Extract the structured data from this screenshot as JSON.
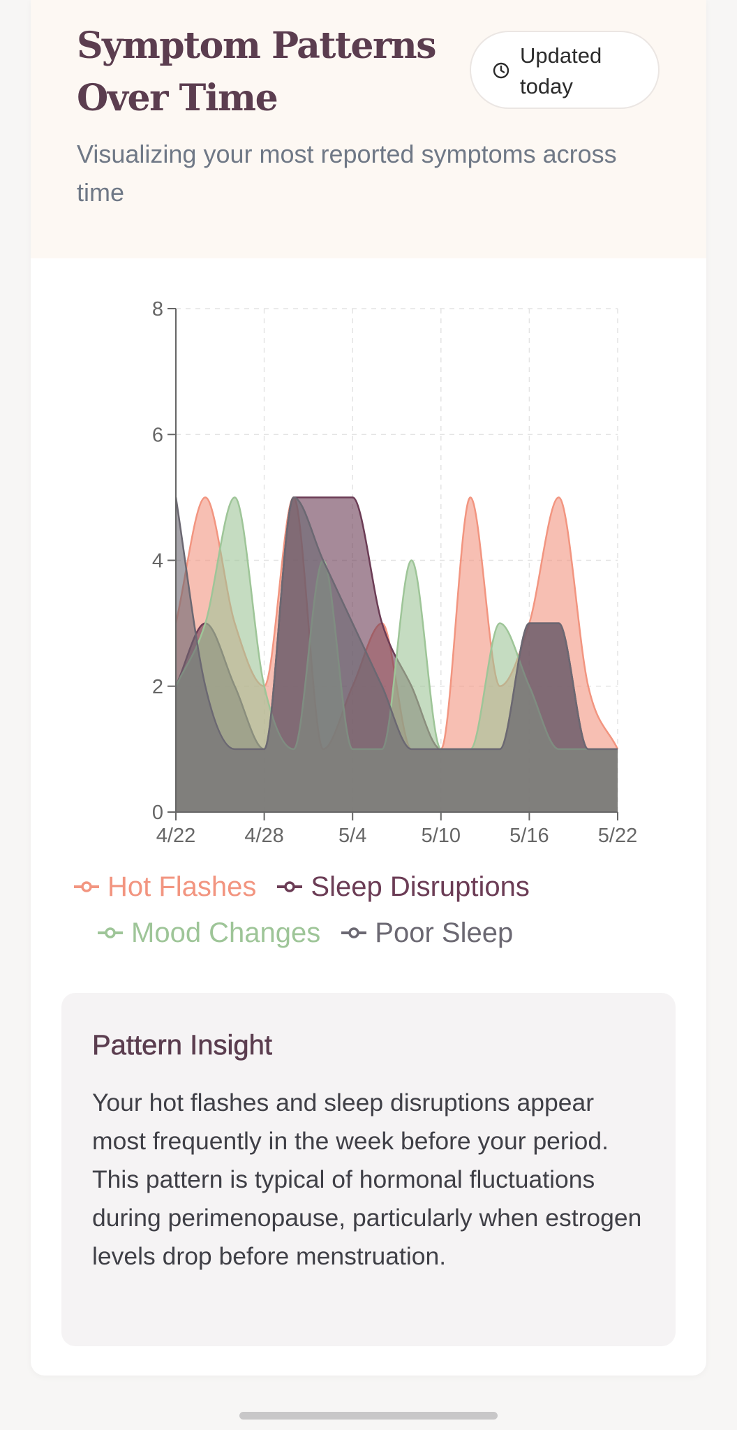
{
  "header": {
    "title": "Symptom Patterns Over Time",
    "badge_text": "Updated today",
    "subtitle": "Visualizing your most reported symptoms across time",
    "badge_icon": "clock-icon"
  },
  "chart_data": {
    "type": "area",
    "x": [
      "4/22",
      "4/24",
      "4/26",
      "4/28",
      "4/30",
      "5/2",
      "5/4",
      "5/6",
      "5/8",
      "5/10",
      "5/12",
      "5/14",
      "5/16",
      "5/18",
      "5/20",
      "5/22"
    ],
    "x_ticks": [
      "4/22",
      "4/28",
      "5/4",
      "5/10",
      "5/16",
      "5/22"
    ],
    "y_ticks": [
      "0",
      "2",
      "4",
      "6",
      "8"
    ],
    "ylim": [
      0,
      8
    ],
    "grid": true,
    "legend_position": "bottom",
    "series": [
      {
        "name": "Hot Flashes",
        "color": "#f29580",
        "values": [
          3,
          5,
          3,
          2,
          5,
          1,
          2,
          3,
          1,
          1,
          5,
          2,
          3,
          5,
          2,
          1
        ]
      },
      {
        "name": "Sleep Disruptions",
        "color": "#6b3c55",
        "values": [
          2,
          3,
          2,
          1,
          5,
          5,
          5,
          3,
          2,
          1,
          1,
          1,
          3,
          3,
          1,
          1
        ]
      },
      {
        "name": "Mood Changes",
        "color": "#9ec598",
        "values": [
          2,
          3,
          5,
          2,
          1,
          4,
          1,
          1,
          4,
          1,
          1,
          3,
          2,
          1,
          1,
          1
        ]
      },
      {
        "name": "Poor Sleep",
        "color": "#6b6872",
        "values": [
          5,
          2,
          1,
          1,
          5,
          4,
          3,
          2,
          1,
          1,
          1,
          1,
          3,
          3,
          1,
          1
        ]
      }
    ]
  },
  "insight": {
    "title": "Pattern Insight",
    "body": "Your hot flashes and sleep disruptions appear most frequently in the week before your period. This pattern is typical of hormonal fluctuations during perimenopause, particularly when estrogen levels drop before menstruation."
  }
}
